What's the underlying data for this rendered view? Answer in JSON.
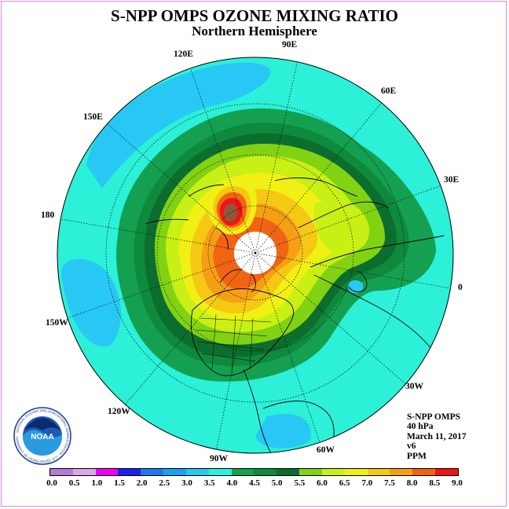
{
  "header": {
    "title": "S-NPP OMPS OZONE MIXING RATIO",
    "subtitle": "Northern Hemisphere"
  },
  "longitude_labels": [
    "90E",
    "60E",
    "30E",
    "0",
    "30W",
    "60W",
    "90W",
    "120W",
    "150W",
    "180",
    "150E",
    "120E"
  ],
  "info": {
    "instrument": "S-NPP OMPS",
    "level": "40 hPa",
    "date": "March 11, 2017",
    "version": "v6",
    "units": "PPM"
  },
  "colorbar": {
    "labels": [
      "0.0",
      "0.5",
      "1.0",
      "1.5",
      "2.0",
      "2.5",
      "3.0",
      "3.5",
      "4.0",
      "4.5",
      "5.0",
      "5.5",
      "6.0",
      "6.5",
      "7.0",
      "7.5",
      "8.0",
      "8.5",
      "9.0"
    ],
    "colors": [
      "#b87ad9",
      "#d9a8e8",
      "#f000f0",
      "#1e1ef0",
      "#1e78f0",
      "#1e9ef0",
      "#28c8f5",
      "#2cf0d8",
      "#14a050",
      "#0e8a3c",
      "#0b6e2e",
      "#82d214",
      "#c8f014",
      "#f0f014",
      "#f5c814",
      "#f5a014",
      "#f06414",
      "#f01414",
      "#8b5a3c"
    ]
  },
  "map": {
    "colors": {
      "outer": "#2cf0d8",
      "blue_low": "#28c8f5",
      "green": "#14a050",
      "green_mid": "#0e8a3c",
      "green_dark": "#0b6e2e",
      "lime": "#82d214",
      "yellow_green": "#c8f014",
      "yellow": "#f0f014",
      "gold": "#f5c814",
      "orange": "#f5a014",
      "orange_red": "#f06414",
      "red": "#f01414",
      "brown": "#8b5a3c",
      "pole_mask": "#ffffff"
    }
  },
  "logo": {
    "text": "NOAA",
    "ring_text": "NATIONAL OCEANIC AND ATMOSPHERIC ADMINISTRATION · U.S. DEPARTMENT OF COMMERCE"
  }
}
